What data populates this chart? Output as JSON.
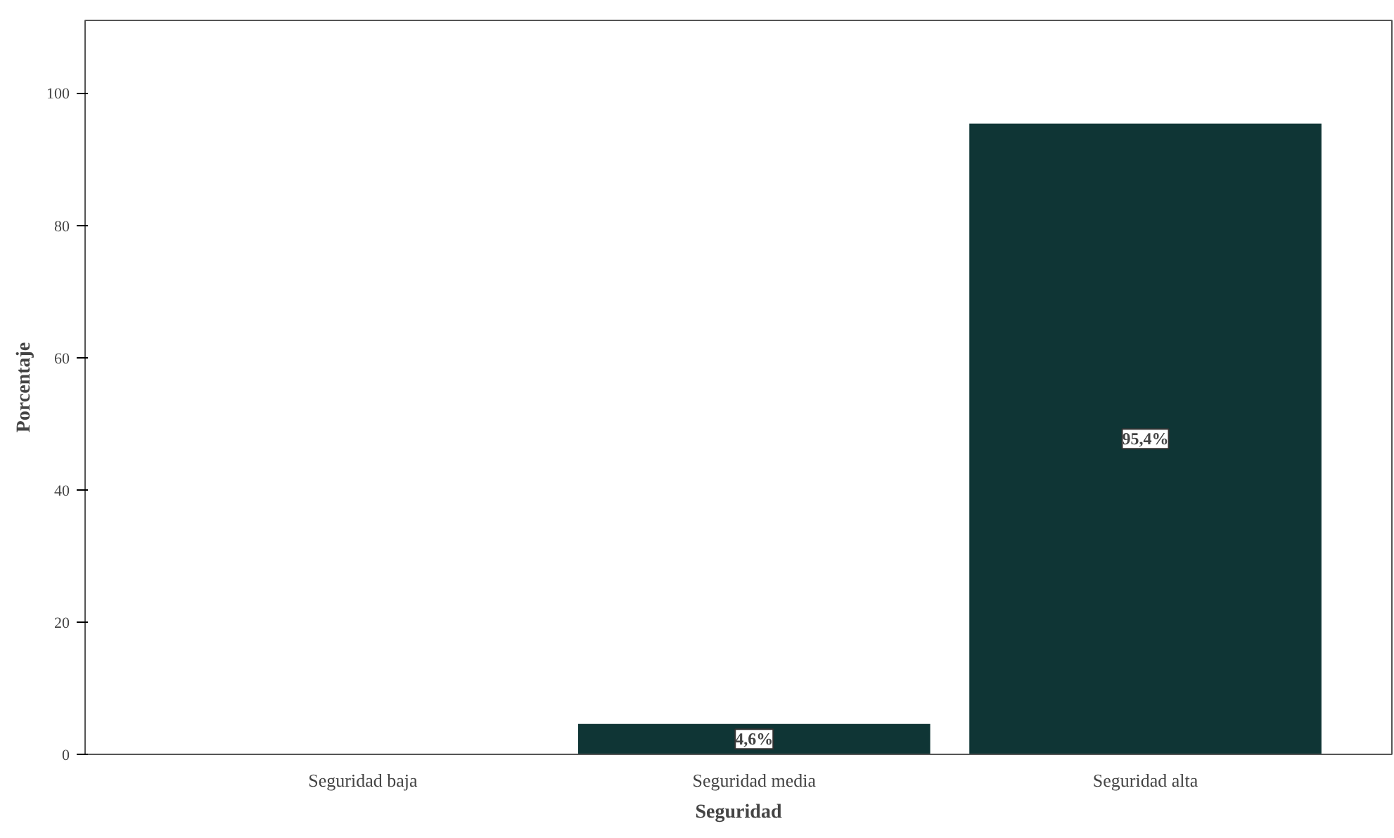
{
  "chart_data": {
    "type": "bar",
    "xlabel": "Seguridad",
    "ylabel": "Porcentaje",
    "categories": [
      "Seguridad baja",
      "Seguridad media",
      "Seguridad alta"
    ],
    "values": [
      0,
      4.6,
      95.4
    ],
    "value_labels": [
      null,
      "4,6%",
      "95,4%"
    ],
    "color": "#0f3535",
    "ylim": [
      0,
      111
    ],
    "yticks": [
      0,
      20,
      40,
      60,
      80,
      100
    ],
    "grid": false
  }
}
